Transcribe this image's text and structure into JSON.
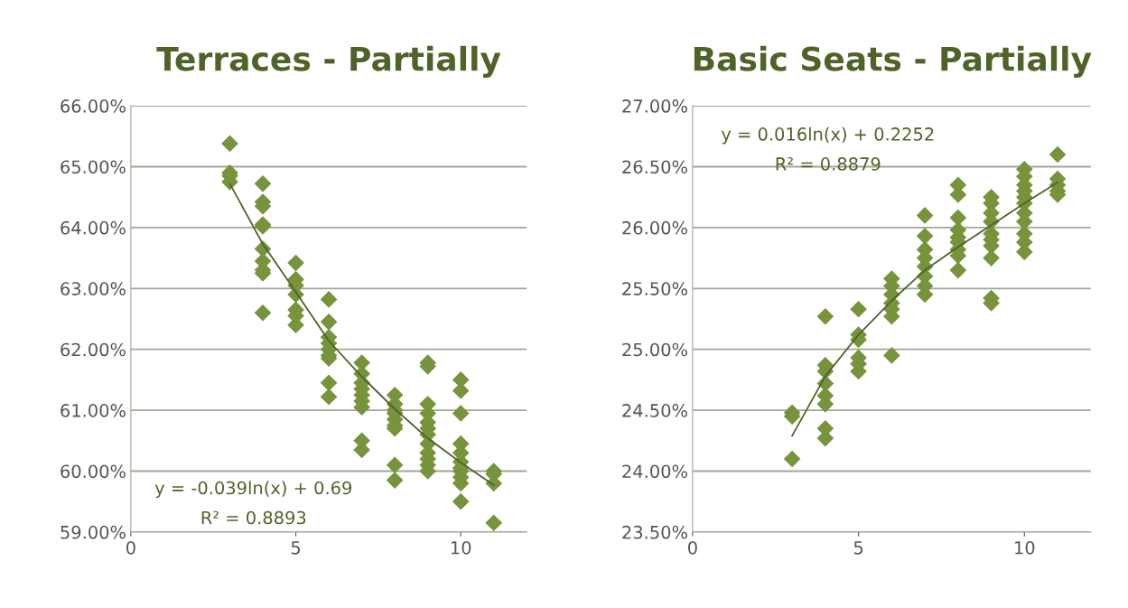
{
  "chart_data": [
    {
      "type": "scatter",
      "title": "Terraces - Partially",
      "xlim": [
        0,
        12
      ],
      "xticks": [
        0,
        5,
        10
      ],
      "ylim": [
        59,
        66
      ],
      "yticks": [
        {
          "value": 59,
          "label": "59.00%"
        },
        {
          "value": 60,
          "label": "60.00%"
        },
        {
          "value": 61,
          "label": "61.00%"
        },
        {
          "value": 62,
          "label": "62.00%"
        },
        {
          "value": 63,
          "label": "63.00%"
        },
        {
          "value": 64,
          "label": "64.00%"
        },
        {
          "value": 65,
          "label": "65.00%"
        },
        {
          "value": 66,
          "label": "66.00%"
        }
      ],
      "grid": "y",
      "legend": false,
      "marker": "diamond",
      "annotations": [
        "y = -0.039ln(x) + 0.69",
        "R² = 0.8893"
      ],
      "series": [
        {
          "color": "#77933c",
          "x": [
            3,
            3,
            3,
            3,
            4,
            4,
            4,
            4,
            4,
            4,
            4,
            4,
            4,
            4,
            5,
            5,
            5,
            5,
            5,
            5,
            5,
            6,
            6,
            6,
            6,
            6,
            6,
            6,
            6,
            6,
            7,
            7,
            7,
            7,
            7,
            7,
            7,
            7,
            7,
            8,
            8,
            8,
            8,
            8,
            8,
            8,
            8,
            8,
            9,
            9,
            9,
            9,
            9,
            9,
            9,
            9,
            9,
            9,
            9,
            9,
            10,
            10,
            10,
            10,
            10,
            10,
            10,
            10,
            10,
            10,
            10,
            11,
            11,
            11,
            11
          ],
          "values": [
            65.38,
            64.9,
            64.85,
            64.75,
            64.72,
            64.42,
            64.35,
            64.05,
            64.02,
            63.65,
            63.45,
            63.3,
            63.25,
            62.6,
            63.42,
            63.15,
            63.05,
            62.9,
            62.65,
            62.55,
            62.4,
            62.82,
            62.45,
            62.2,
            62.1,
            62.0,
            61.9,
            61.85,
            61.45,
            61.22,
            61.78,
            61.6,
            61.45,
            61.35,
            61.25,
            61.15,
            61.05,
            60.5,
            60.35,
            61.25,
            61.1,
            61.0,
            60.95,
            60.85,
            60.75,
            60.7,
            60.1,
            59.85,
            61.78,
            61.72,
            61.1,
            60.95,
            60.8,
            60.7,
            60.6,
            60.45,
            60.3,
            60.2,
            60.1,
            60.0,
            61.5,
            61.32,
            60.95,
            60.45,
            60.3,
            60.15,
            60.05,
            60.0,
            59.9,
            59.8,
            59.5,
            60.0,
            59.95,
            59.8,
            59.15
          ]
        },
        {
          "type": "line",
          "color": "#4f6228",
          "marker": "none",
          "x": [
            3,
            4,
            5,
            6,
            7,
            8,
            9,
            10,
            11
          ],
          "values": [
            64.72,
            63.73,
            62.94,
            62.14,
            61.55,
            61.02,
            60.54,
            60.14,
            59.77
          ]
        }
      ]
    },
    {
      "type": "scatter",
      "title": "Basic Seats - Partially",
      "xlim": [
        0,
        12
      ],
      "xticks": [
        0,
        5,
        10
      ],
      "ylim": [
        23.5,
        27
      ],
      "yticks": [
        {
          "value": 23.5,
          "label": "23.50%"
        },
        {
          "value": 24,
          "label": "24.00%"
        },
        {
          "value": 24.5,
          "label": "24.50%"
        },
        {
          "value": 25,
          "label": "25.00%"
        },
        {
          "value": 25.5,
          "label": "25.50%"
        },
        {
          "value": 26,
          "label": "26.00%"
        },
        {
          "value": 26.5,
          "label": "26.50%"
        },
        {
          "value": 27,
          "label": "27.00%"
        }
      ],
      "grid": "y",
      "legend": false,
      "marker": "diamond",
      "annotations": [
        "y = 0.016ln(x) + 0.2252",
        "R² = 0.8879"
      ],
      "series": [
        {
          "color": "#77933c",
          "x": [
            3,
            3,
            3,
            4,
            4,
            4,
            4,
            4,
            4,
            4,
            4,
            5,
            5,
            5,
            5,
            5,
            5,
            6,
            6,
            6,
            6,
            6,
            6,
            6,
            7,
            7,
            7,
            7,
            7,
            7,
            7,
            7,
            8,
            8,
            8,
            8,
            8,
            8,
            8,
            8,
            8,
            9,
            9,
            9,
            9,
            9,
            9,
            9,
            9,
            9,
            9,
            10,
            10,
            10,
            10,
            10,
            10,
            10,
            10,
            10,
            10,
            10,
            11,
            11,
            11,
            11,
            11
          ],
          "values": [
            24.48,
            24.45,
            24.1,
            25.27,
            24.87,
            24.82,
            24.72,
            24.62,
            24.55,
            24.35,
            24.27,
            25.33,
            25.12,
            25.08,
            24.93,
            24.88,
            24.82,
            25.58,
            25.52,
            25.45,
            25.38,
            25.33,
            25.27,
            24.95,
            26.1,
            25.93,
            25.82,
            25.75,
            25.68,
            25.6,
            25.52,
            25.45,
            26.35,
            26.27,
            26.08,
            25.98,
            25.92,
            25.88,
            25.82,
            25.77,
            25.65,
            26.25,
            26.2,
            26.12,
            26.05,
            25.95,
            25.9,
            25.85,
            25.75,
            25.42,
            25.38,
            26.48,
            26.42,
            26.35,
            26.3,
            26.25,
            26.2,
            26.12,
            26.05,
            25.95,
            25.88,
            25.8,
            26.6,
            26.4,
            26.35,
            26.3,
            26.27
          ]
        },
        {
          "type": "line",
          "color": "#4f6228",
          "marker": "none",
          "x": [
            3,
            4,
            5,
            6,
            7,
            8,
            9,
            10,
            11
          ],
          "values": [
            24.29,
            24.78,
            25.12,
            25.4,
            25.65,
            25.84,
            26.02,
            26.2,
            26.37
          ]
        }
      ]
    }
  ]
}
